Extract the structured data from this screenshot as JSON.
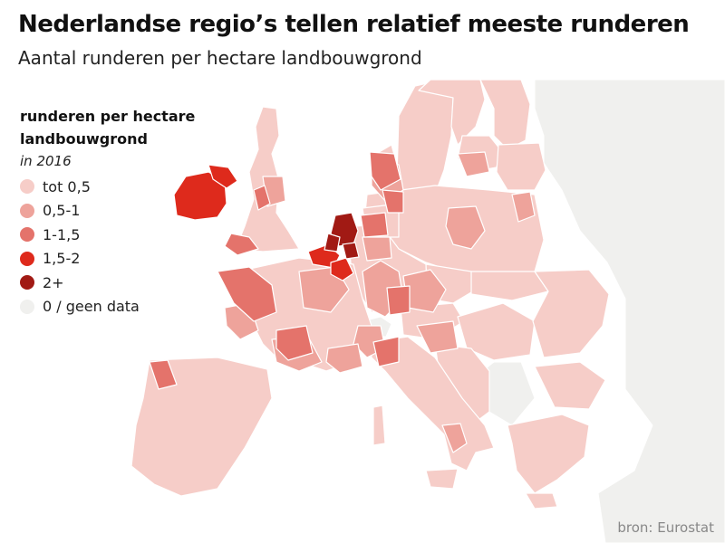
{
  "title": "Nederlandse regio’s tellen relatief meeste runderen",
  "subtitle": "Aantal runderen per hectare landbouwgrond",
  "legend": {
    "title_line1": "runderen per hectare",
    "title_line2": "landbouwgrond",
    "year": "in 2016",
    "classes": [
      {
        "label": "tot 0,5",
        "color": "#f6cdc8"
      },
      {
        "label": "0,5-1",
        "color": "#eea39b"
      },
      {
        "label": "1-1,5",
        "color": "#e4736b"
      },
      {
        "label": "1,5-2",
        "color": "#de2a1c"
      },
      {
        "label": "2+",
        "color": "#a11a14"
      },
      {
        "label": "0 / geen data",
        "color": "#f0f0ee"
      }
    ]
  },
  "source": "bron: Eurostat",
  "colors": {
    "background": "#ffffff",
    "no_data_land": "#f0f0ee",
    "region_border": "#ffffff"
  }
}
